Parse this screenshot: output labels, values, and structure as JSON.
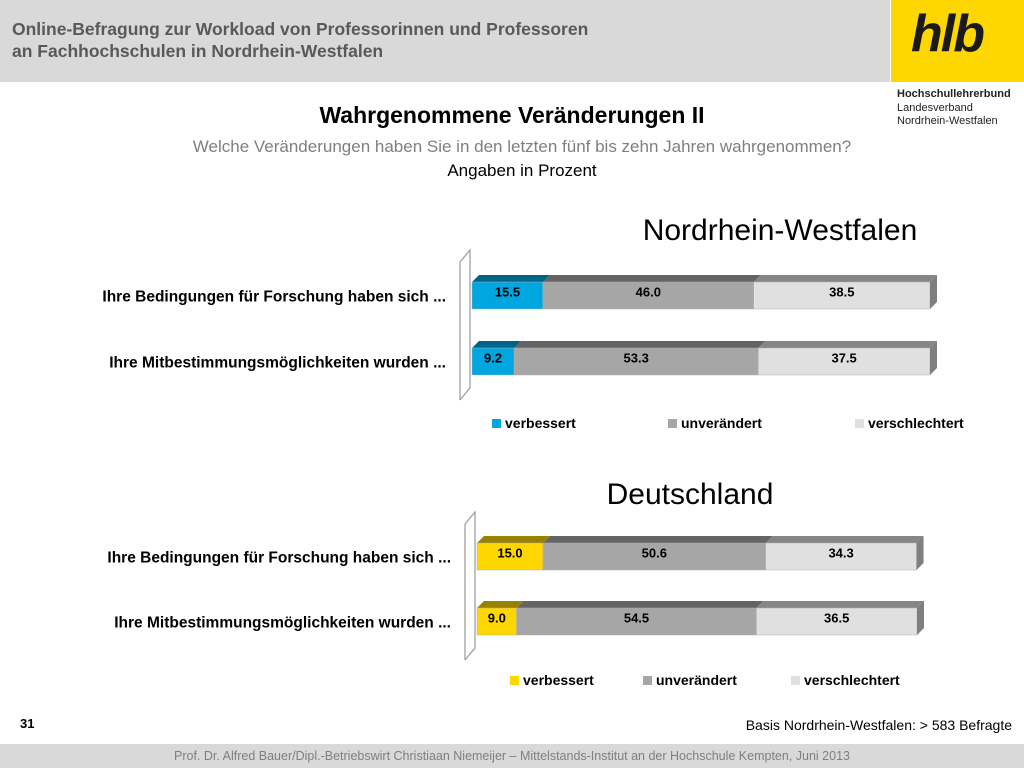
{
  "header": {
    "title_line1": "Online-Befragung  zur  Workload von Professorinnen und Professoren",
    "title_line2": "an Fachhochschulen in Nordrhein-Westfalen"
  },
  "logo": {
    "text": "hlb",
    "org_name": "Hochschullehrerbund",
    "org_sub1": "Landesverband",
    "org_sub2": "Nordrhein-Westfalen"
  },
  "slide": {
    "title": "Wahrgenommene Veränderungen II",
    "question": "Welche Veränderungen haben Sie in den letzten fünf bis zehn Jahren wahrgenommen?",
    "unit": "Angaben in Prozent"
  },
  "colors": {
    "nrw_accent": "#00a6e0",
    "de_accent": "#ffd700",
    "unveraendert": "#a6a6a6",
    "verschlechtert": "#e0e0e0"
  },
  "chart_data": [
    {
      "type": "bar",
      "orientation": "horizontal",
      "stacked": true,
      "title": "Nordrhein-Westfalen",
      "categories": [
        "Ihre Bedingungen für Forschung haben sich ...",
        "Ihre Mitbestimmungsmöglichkeiten wurden ..."
      ],
      "series": [
        {
          "name": "verbessert",
          "values": [
            15.5,
            9.2
          ],
          "color": "#00a6e0"
        },
        {
          "name": "unverändert",
          "values": [
            46.0,
            53.3
          ],
          "color": "#a6a6a6"
        },
        {
          "name": "verschlechtert",
          "values": [
            38.5,
            37.5
          ],
          "color": "#e0e0e0"
        }
      ],
      "xlim": [
        0,
        100
      ],
      "legend": "bottom",
      "grid": false
    },
    {
      "type": "bar",
      "orientation": "horizontal",
      "stacked": true,
      "title": "Deutschland",
      "categories": [
        "Ihre Bedingungen für Forschung haben sich ...",
        "Ihre Mitbestimmungsmöglichkeiten wurden ..."
      ],
      "series": [
        {
          "name": "verbessert",
          "values": [
            15.0,
            9.0
          ],
          "color": "#ffd700"
        },
        {
          "name": "unverändert",
          "values": [
            50.6,
            54.5
          ],
          "color": "#a6a6a6"
        },
        {
          "name": "verschlechtert",
          "values": [
            34.3,
            36.5
          ],
          "color": "#e0e0e0"
        }
      ],
      "xlim": [
        0,
        100
      ],
      "legend": "bottom",
      "grid": false
    }
  ],
  "footer": {
    "page_number": "31",
    "basis": "Basis Nordrhein-Westfalen: > 583 Befragte",
    "credit": "Prof. Dr. Alfred Bauer/Dipl.-Betriebswirt Christiaan Niemeijer – Mittelstands-Institut an der Hochschule Kempten, Juni 2013"
  }
}
